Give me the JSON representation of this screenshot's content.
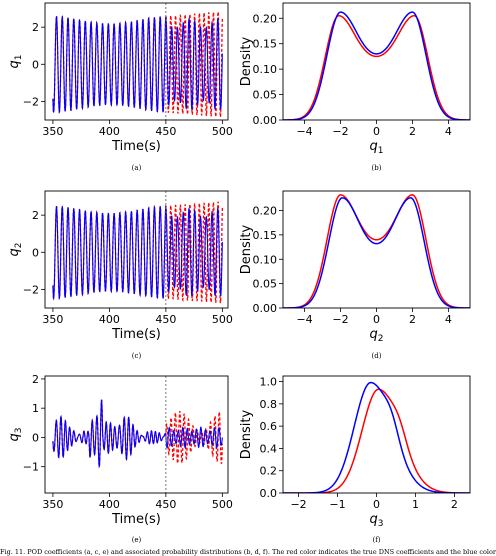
{
  "caption": "Fig. 11. POD coefficients (a, c, e) and associated probability distributions (b, d, f). The red color indicates the true DNS coefficients and the blue color",
  "colors": {
    "true": "#ff0000",
    "pred": "#0000ff",
    "vline": "#555555"
  },
  "chart_data": [
    {
      "type": "line",
      "panel": "(a)",
      "xlabel": "Time(s)",
      "ylabel": "q1",
      "xlim": [
        343,
        505
      ],
      "ylim": [
        -3.0,
        3.3
      ],
      "xticks": [
        350,
        400,
        450,
        500
      ],
      "yticks": [
        -2,
        0,
        2
      ],
      "vline": 450,
      "amplitude": 2.6,
      "period": 5.1,
      "series": [
        {
          "style": "solid",
          "color": "#0000ff"
        },
        {
          "style": "dashed",
          "color": "#ff0000"
        }
      ]
    },
    {
      "type": "line",
      "panel": "(b)",
      "xlabel": "q1",
      "ylabel": "Density",
      "xlim": [
        -5.2,
        5.2
      ],
      "ylim": [
        0.0,
        0.23
      ],
      "xticks": [
        -4,
        -2,
        0,
        2,
        4
      ],
      "yticks": [
        0.0,
        0.05,
        0.1,
        0.15,
        0.2
      ],
      "series": [
        {
          "color": "#ff0000",
          "peaks": [
            -2.1,
            2.1
          ],
          "peak_value": 0.205,
          "center_value": 0.125
        },
        {
          "color": "#0000ff",
          "peaks": [
            -2.0,
            2.0
          ],
          "peak_value": 0.212,
          "center_value": 0.13
        }
      ]
    },
    {
      "type": "line",
      "panel": "(c)",
      "xlabel": "Time(s)",
      "ylabel": "q2",
      "xlim": [
        343,
        505
      ],
      "ylim": [
        -3.0,
        3.3
      ],
      "xticks": [
        350,
        400,
        450,
        500
      ],
      "yticks": [
        -2,
        0,
        2
      ],
      "vline": 450,
      "amplitude": 2.5,
      "period": 5.1,
      "series": [
        {
          "style": "solid",
          "color": "#0000ff"
        },
        {
          "style": "dashed",
          "color": "#ff0000"
        }
      ]
    },
    {
      "type": "line",
      "panel": "(d)",
      "xlabel": "q2",
      "ylabel": "Density",
      "xlim": [
        -5.2,
        5.2
      ],
      "ylim": [
        0.0,
        0.24
      ],
      "xticks": [
        -4,
        -2,
        0,
        2,
        4
      ],
      "yticks": [
        0.0,
        0.05,
        0.1,
        0.15,
        0.2
      ],
      "series": [
        {
          "color": "#ff0000",
          "peaks": [
            -2.0,
            2.0
          ],
          "peak_value": 0.232,
          "center_value": 0.14
        },
        {
          "color": "#0000ff",
          "peaks": [
            -1.9,
            1.9
          ],
          "peak_value": 0.226,
          "center_value": 0.132
        }
      ]
    },
    {
      "type": "line",
      "panel": "(e)",
      "xlabel": "Time(s)",
      "ylabel": "q3",
      "xlim": [
        343,
        505
      ],
      "ylim": [
        -1.9,
        2.1
      ],
      "xticks": [
        350,
        400,
        450,
        500
      ],
      "yticks": [
        -1,
        0,
        1,
        2
      ],
      "vline": 450,
      "amplitude": 0.5,
      "period": 4.0,
      "series": [
        {
          "style": "solid",
          "color": "#0000ff"
        },
        {
          "style": "dashed",
          "color": "#ff0000"
        }
      ]
    },
    {
      "type": "line",
      "panel": "(f)",
      "xlabel": "q3",
      "ylabel": "Density",
      "xlim": [
        -2.4,
        2.4
      ],
      "ylim": [
        0.0,
        1.05
      ],
      "xticks": [
        -2,
        -1,
        0,
        1,
        2
      ],
      "yticks": [
        0.0,
        0.2,
        0.4,
        0.6,
        0.8,
        1.0
      ],
      "series": [
        {
          "color": "#ff0000",
          "peak_x": 0.05,
          "peak_value": 0.93
        },
        {
          "color": "#0000ff",
          "peak_x": -0.15,
          "peak_value": 0.99
        }
      ]
    }
  ]
}
